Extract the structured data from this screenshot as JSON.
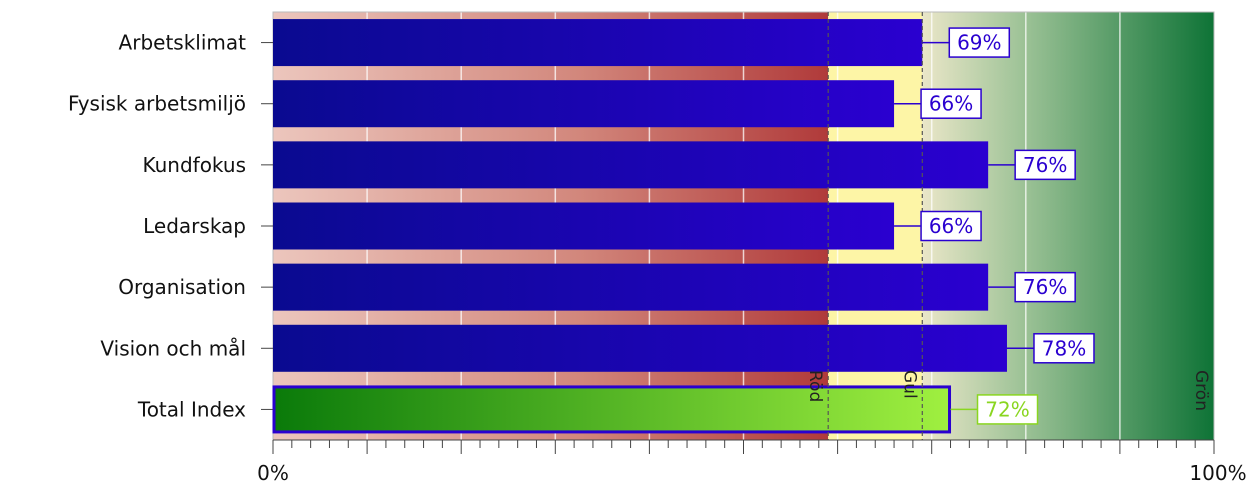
{
  "chart_data": {
    "type": "bar",
    "orientation": "horizontal",
    "categories": [
      "Arbetsklimat",
      "Fysisk arbetsmiljö",
      "Kundfokus",
      "Ledarskap",
      "Organisation",
      "Vision och mål",
      "Total Index"
    ],
    "values": [
      69,
      66,
      76,
      66,
      76,
      78,
      72
    ],
    "value_labels": [
      "69%",
      "66%",
      "76%",
      "66%",
      "76%",
      "78%",
      "72%"
    ],
    "unit": "%",
    "xlim": [
      0,
      100
    ],
    "x_tick_labels": [
      "0%",
      "100%"
    ],
    "grid": true,
    "zones": [
      {
        "label": "Röd",
        "from": 0,
        "to": 59,
        "color": "#b03a3a"
      },
      {
        "label": "Gul",
        "from": 59,
        "to": 69,
        "color": "#fdf5a6"
      },
      {
        "label": "Grön",
        "from": 69,
        "to": 100,
        "color": "#0e7336"
      }
    ],
    "bar_color": "#2a00d0",
    "total_bar_colors": [
      "#0a7a0a",
      "#a0f040"
    ],
    "total_label_color": "#8ad620"
  }
}
